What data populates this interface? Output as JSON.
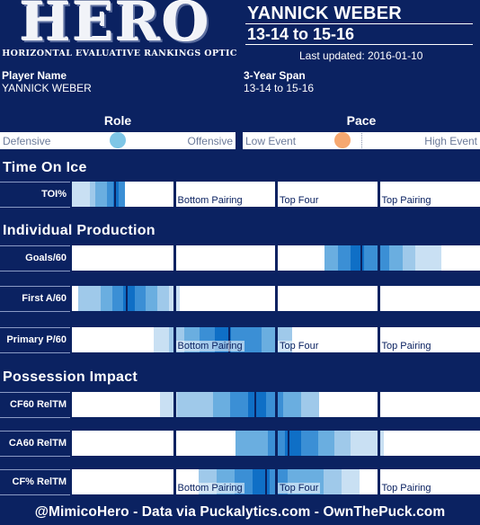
{
  "logo": {
    "word": "HERO",
    "subtitle": "HORIZONTAL EVALUATIVE RANKINGS OPTIC"
  },
  "header": {
    "player": "YANNICK WEBER",
    "span": "13-14 to 15-16",
    "updated": "Last updated: 2016-01-10"
  },
  "info": {
    "player_label": "Player Name",
    "player_value": "YANNICK WEBER",
    "span_label": "3-Year Span",
    "span_value": "13-14 to 15-16"
  },
  "role": {
    "title": "Role",
    "left": "Defensive",
    "right": "Offensive",
    "value": 0.5,
    "color": "#7ec6e6"
  },
  "pace": {
    "title": "Pace",
    "left": "Low Event",
    "right": "High Event",
    "value": 0.42,
    "color": "#f6a870"
  },
  "tiers": [
    "Bottom Pairing",
    "Top Four",
    "Top Pairing"
  ],
  "colors": [
    "#c9e0f3",
    "#9fc9ea",
    "#6aaee0",
    "#3b8fd5",
    "#0f6fc6"
  ],
  "sections": [
    {
      "title": "Time On Ice",
      "rows": [
        {
          "label": "TOI%",
          "low": 0.0,
          "median": 0.105,
          "high": 0.13,
          "show_tiers": true
        }
      ]
    },
    {
      "title": "Individual Production",
      "rows": [
        {
          "label": "Goals/60",
          "low": 0.62,
          "median": 0.71,
          "high": 0.905,
          "show_tiers": false
        },
        {
          "label": "First A/60",
          "low": 0.015,
          "median": 0.135,
          "high": 0.265,
          "show_tiers": false
        },
        {
          "label": "Primary P/60",
          "low": 0.2,
          "median": 0.385,
          "high": 0.54,
          "show_tiers": true
        }
      ]
    },
    {
      "title": "Possession Impact",
      "rows": [
        {
          "label": "CF60 RelTM",
          "low": 0.215,
          "median": 0.45,
          "high": 0.605,
          "show_tiers": false
        },
        {
          "label": "CA60 RelTM",
          "low": 0.4,
          "median": 0.53,
          "high": 0.765,
          "show_tiers": false
        },
        {
          "label": "CF% RelTM",
          "low": 0.31,
          "median": 0.475,
          "high": 0.705,
          "show_tiers": true
        }
      ]
    }
  ],
  "footer": "@MimicoHero - Data via Puckalytics.com - OwnThePuck.com",
  "chart_data": {
    "type": "bar",
    "scale": "percentile range (0 = worst, 1 = best)",
    "categories": [
      "TOI%",
      "Goals/60",
      "First A/60",
      "Primary P/60",
      "CF60 RelTM",
      "CA60 RelTM",
      "CF% RelTM"
    ],
    "series": [
      {
        "name": "low",
        "values": [
          0.0,
          0.62,
          0.015,
          0.2,
          0.215,
          0.4,
          0.31
        ]
      },
      {
        "name": "median",
        "values": [
          0.105,
          0.71,
          0.135,
          0.385,
          0.45,
          0.53,
          0.475
        ]
      },
      {
        "name": "high",
        "values": [
          0.13,
          0.905,
          0.265,
          0.54,
          0.605,
          0.765,
          0.705
        ]
      }
    ],
    "tier_labels": [
      "Bottom Pairing",
      "Top Four",
      "Top Pairing"
    ],
    "tier_boundaries": [
      0.25,
      0.5,
      0.75
    ]
  }
}
